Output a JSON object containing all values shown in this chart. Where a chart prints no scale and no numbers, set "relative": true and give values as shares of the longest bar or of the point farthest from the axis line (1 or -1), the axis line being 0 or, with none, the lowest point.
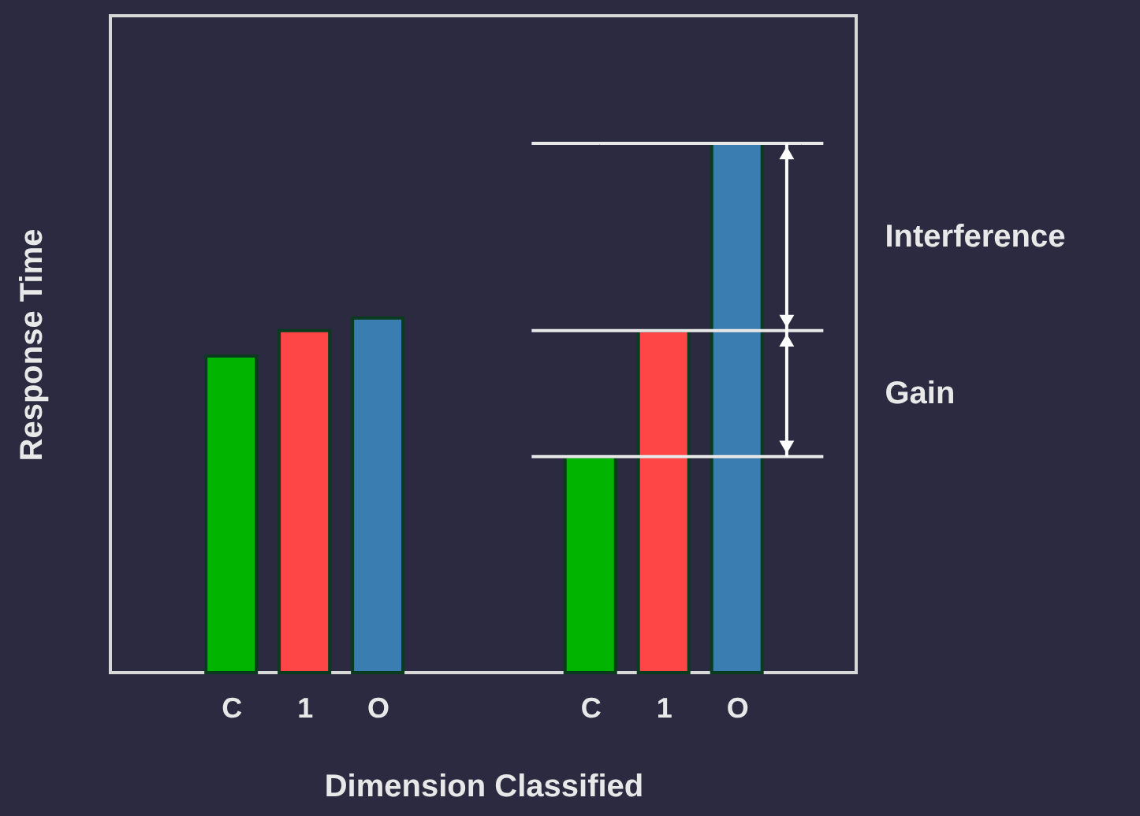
{
  "chart_data": {
    "type": "bar",
    "relative": true,
    "xlabel": "Dimension Classified",
    "ylabel": "Response Time",
    "categories": [
      "C",
      "1",
      "O",
      "C",
      "1",
      "O"
    ],
    "values": [
      0.598,
      0.646,
      0.67,
      0.408,
      0.646,
      1
    ],
    "colors": [
      "#00b400",
      "#ff4646",
      "#3a7db0",
      "#00b400",
      "#ff4646",
      "#3a7db0"
    ],
    "ref_lines": [
      {
        "axis": "y",
        "value": 0.408,
        "color": "#e8e8e8"
      },
      {
        "axis": "y",
        "value": 0.646,
        "color": "#e8e8e8"
      },
      {
        "axis": "y",
        "value": 1,
        "color": "#e8e8e8"
      }
    ],
    "annotations": [
      "Gain",
      "Interference"
    ],
    "grid": false
  }
}
